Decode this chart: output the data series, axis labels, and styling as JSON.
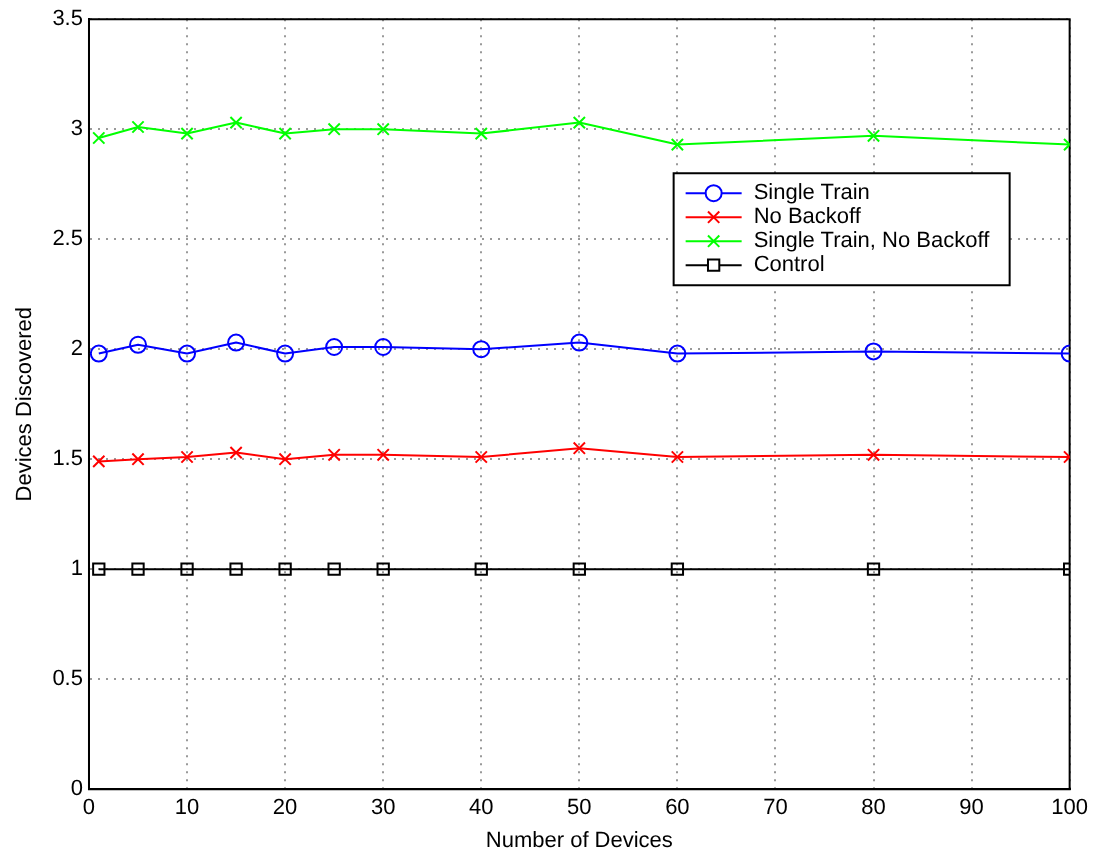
{
  "chart_data": {
    "type": "line",
    "xlabel": "Number of Devices",
    "ylabel": "Devices Discovered",
    "x": [
      1,
      5,
      10,
      15,
      20,
      25,
      30,
      40,
      50,
      60,
      80,
      100
    ],
    "series": [
      {
        "name": "Single Train",
        "color": "#0000ff",
        "marker": "circle",
        "values": [
          1.98,
          2.02,
          1.98,
          2.03,
          1.98,
          2.01,
          2.01,
          2.0,
          2.03,
          1.98,
          1.99,
          1.98
        ]
      },
      {
        "name": "No Backoff",
        "color": "#ff0000",
        "marker": "cross",
        "values": [
          1.49,
          1.5,
          1.51,
          1.53,
          1.5,
          1.52,
          1.52,
          1.51,
          1.55,
          1.51,
          1.52,
          1.51
        ]
      },
      {
        "name": "Single Train, No Backoff",
        "color": "#00ff00",
        "marker": "cross",
        "values": [
          2.96,
          3.01,
          2.98,
          3.03,
          2.98,
          3.0,
          3.0,
          2.98,
          3.03,
          2.93,
          2.97,
          2.93
        ]
      },
      {
        "name": "Control",
        "color": "#000000",
        "marker": "square",
        "values": [
          1,
          1,
          1,
          1,
          1,
          1,
          1,
          1,
          1,
          1,
          1,
          1
        ]
      }
    ],
    "xlim": [
      0,
      100
    ],
    "xticks": [
      0,
      10,
      20,
      30,
      40,
      50,
      60,
      70,
      80,
      90,
      100
    ],
    "ylim": [
      0,
      3.5
    ],
    "yticks": [
      0,
      0.5,
      1,
      1.5,
      2,
      2.5,
      3,
      3.5
    ],
    "grid": true,
    "legend": "right",
    "line_style": "solid"
  }
}
